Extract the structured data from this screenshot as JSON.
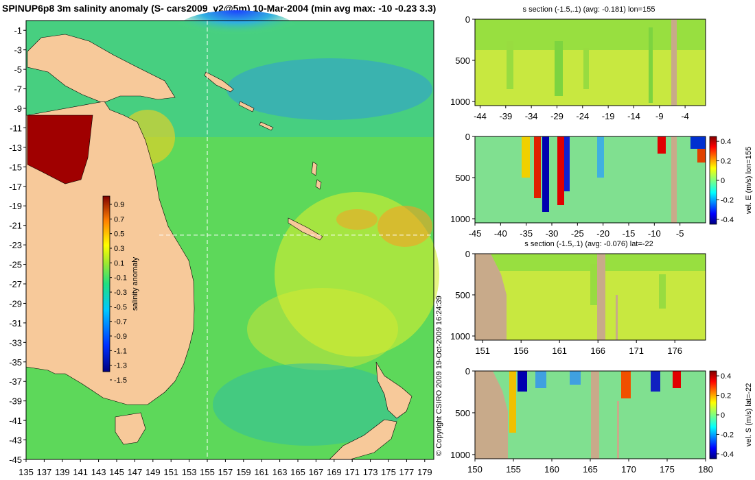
{
  "main_title": "SPINUP6p8 3m salinity anomaly (S- cars2009_v2@5m) 10-Mar-2004 (min avg max: -10 -0.23 3.3)",
  "copyright": "© Copyright CSIRO 2009   19-Oct-2009 16:24:39",
  "colors": {
    "land": "#f7c99a",
    "section_land": "#c8aa8a",
    "neutral_green": "#bfe63c",
    "dashed_line": "#ffffff"
  },
  "chart_data": [
    {
      "id": "map",
      "type": "heatmap",
      "title": "SPINUP6p8 3m salinity anomaly (S- cars2009_v2@5m) 10-Mar-2004 (min avg max: -10 -0.23 3.3)",
      "xlim": [
        135,
        180
      ],
      "ylim": [
        -45,
        0
      ],
      "x_ticks": [
        "135",
        "137",
        "139",
        "141",
        "143",
        "145",
        "147",
        "149",
        "151",
        "153",
        "155",
        "157",
        "159",
        "161",
        "163",
        "165",
        "167",
        "169",
        "171",
        "173",
        "175",
        "177",
        "179"
      ],
      "y_ticks": [
        "-1",
        "-3",
        "-5",
        "-7",
        "-9",
        "-11",
        "-13",
        "-15",
        "-17",
        "-19",
        "-21",
        "-23",
        "-25",
        "-27",
        "-29",
        "-31",
        "-33",
        "-35",
        "-37",
        "-39",
        "-41",
        "-43",
        "-45"
      ],
      "section_lon": 155,
      "section_lat": -22,
      "colorbar": {
        "label": "salinity anomaly",
        "ticks": [
          "0.9",
          "0.7",
          "0.5",
          "0.3",
          "0.1",
          "-0.1",
          "-0.3",
          "-0.5",
          "-0.7",
          "-0.9",
          "-1.1",
          "-1.3",
          "-1.5"
        ],
        "range": [
          -1.5,
          0.9
        ]
      }
    },
    {
      "id": "s-lon",
      "type": "heatmap",
      "title": "s section (-1.5,.1) (avg: -0.181) lon=155",
      "x_ticks": [
        "-44",
        "-39",
        "-34",
        "-29",
        "-24",
        "-19",
        "-14",
        "-9",
        "-4"
      ],
      "xlim": [
        -45,
        0
      ],
      "y_ticks": [
        "0",
        "500",
        "1000"
      ],
      "ylim": [
        0,
        1050
      ]
    },
    {
      "id": "v-lon",
      "type": "heatmap",
      "title": "",
      "x_ticks": [
        "-45",
        "-40",
        "-35",
        "-30",
        "-25",
        "-20",
        "-15",
        "-10",
        "-5"
      ],
      "xlim": [
        -45,
        0
      ],
      "y_ticks": [
        "0",
        "500",
        "1000"
      ],
      "ylim": [
        0,
        1050
      ],
      "colorbar": {
        "label": "vel. E (m/s) lon=155",
        "ticks": [
          "0.4",
          "0.2",
          "0",
          "-0.2",
          "-0.4"
        ],
        "range": [
          -0.45,
          0.45
        ]
      }
    },
    {
      "id": "s-lat",
      "type": "heatmap",
      "title": "s section (-1.5,.1) (avg: -0.076) lat=-22",
      "x_ticks": [
        "151",
        "156",
        "161",
        "166",
        "171",
        "176"
      ],
      "xlim": [
        150,
        180
      ],
      "y_ticks": [
        "0",
        "500",
        "1000"
      ],
      "ylim": [
        0,
        1050
      ]
    },
    {
      "id": "v-lat",
      "type": "heatmap",
      "title": "",
      "x_ticks": [
        "150",
        "155",
        "160",
        "165",
        "170",
        "175",
        "180"
      ],
      "xlim": [
        150,
        180
      ],
      "y_ticks": [
        "0",
        "500",
        "1000"
      ],
      "ylim": [
        0,
        1050
      ],
      "colorbar": {
        "label": "vel. S (m/s) lat=-22",
        "ticks": [
          "0.4",
          "0.2",
          "0",
          "-0.2",
          "-0.4"
        ],
        "range": [
          -0.45,
          0.45
        ]
      }
    }
  ]
}
